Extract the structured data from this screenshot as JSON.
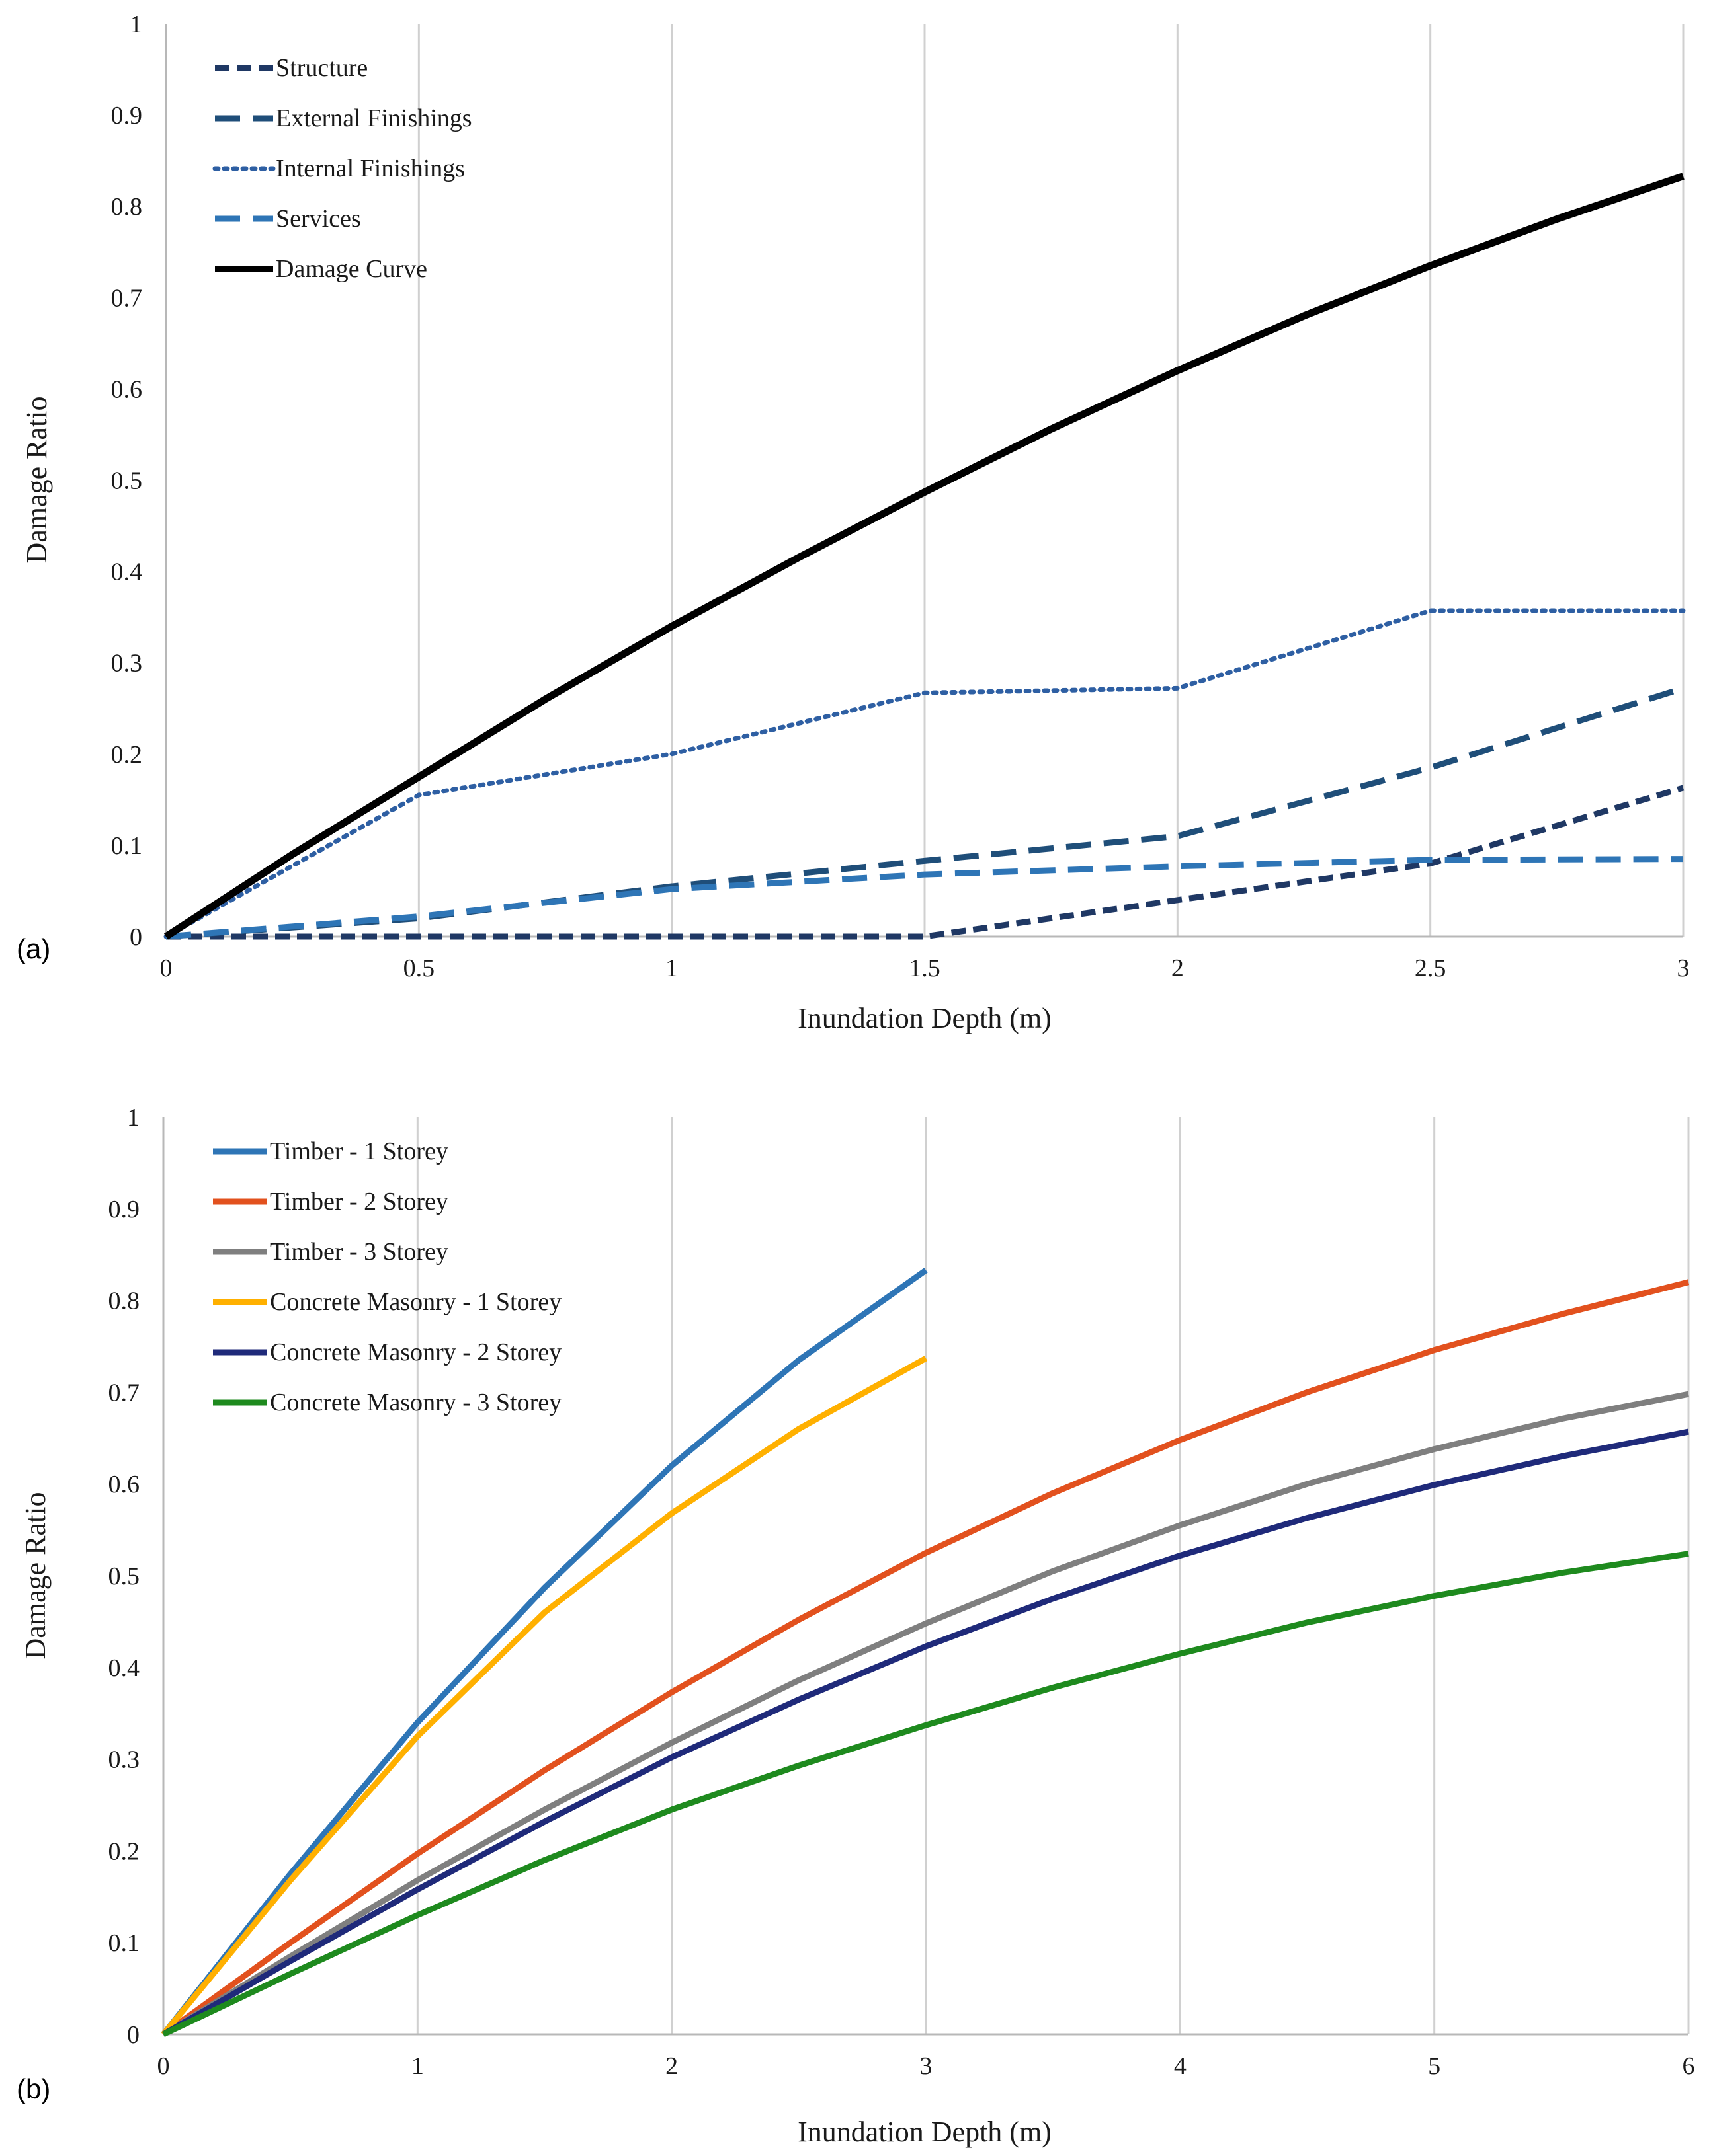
{
  "panels": [
    {
      "label": "(a)",
      "chart_data": {
        "type": "line",
        "title": "",
        "xlabel": "Inundation Depth (m)",
        "ylabel": "Damage Ratio",
        "xlim": [
          0,
          3
        ],
        "ylim": [
          0,
          1
        ],
        "x_ticks": [
          "0",
          "0.5",
          "1",
          "1.5",
          "2",
          "2.5",
          "3"
        ],
        "y_ticks": [
          "0",
          "0.1",
          "0.2",
          "0.3",
          "0.4",
          "0.5",
          "0.6",
          "0.7",
          "0.8",
          "0.9",
          "1"
        ],
        "grid": "vertical",
        "legend_position": "top-left",
        "series": [
          {
            "name": "Structure",
            "color": "#1f3864",
            "dash": "short-dash",
            "x": [
              0,
              0.5,
              1,
              1.5,
              2,
              2.5,
              3
            ],
            "y": [
              0,
              0,
              0,
              0,
              0.04,
              0.08,
              0.163
            ]
          },
          {
            "name": "External Finishings",
            "color": "#1f4e79",
            "dash": "long-dash",
            "x": [
              0,
              0.5,
              1,
              1.5,
              2,
              2.5,
              3
            ],
            "y": [
              0,
              0.02,
              0.055,
              0.083,
              0.11,
              0.185,
              0.272
            ]
          },
          {
            "name": "Internal Finishings",
            "color": "#2e5fa3",
            "dash": "dot",
            "x": [
              0,
              0.5,
              1,
              1.5,
              2,
              2.5,
              3
            ],
            "y": [
              0,
              0.155,
              0.2,
              0.267,
              0.272,
              0.357,
              0.357
            ]
          },
          {
            "name": "Services",
            "color": "#2e75b6",
            "dash": "long-dash",
            "x": [
              0,
              0.5,
              1,
              1.5,
              2,
              2.5,
              3
            ],
            "y": [
              0,
              0.022,
              0.052,
              0.068,
              0.077,
              0.084,
              0.085
            ]
          },
          {
            "name": "Damage Curve",
            "color": "#000000",
            "dash": "solid",
            "x": [
              0,
              0.25,
              0.5,
              0.75,
              1,
              1.25,
              1.5,
              1.75,
              2,
              2.25,
              2.5,
              2.75,
              3
            ],
            "y": [
              0,
              0.09,
              0.175,
              0.26,
              0.34,
              0.415,
              0.487,
              0.556,
              0.62,
              0.68,
              0.735,
              0.786,
              0.833
            ]
          }
        ]
      }
    },
    {
      "label": "(b)",
      "chart_data": {
        "type": "line",
        "title": "",
        "xlabel": "Inundation Depth (m)",
        "ylabel": "Damage Ratio",
        "xlim": [
          0,
          6
        ],
        "ylim": [
          0,
          1
        ],
        "x_ticks": [
          "0",
          "1",
          "2",
          "3",
          "4",
          "5",
          "6"
        ],
        "y_ticks": [
          "0",
          "0.1",
          "0.2",
          "0.3",
          "0.4",
          "0.5",
          "0.6",
          "0.7",
          "0.8",
          "0.9",
          "1"
        ],
        "grid": "vertical",
        "legend_position": "top-left",
        "series": [
          {
            "name": "Timber - 1 Storey",
            "color": "#2e75b6",
            "dash": "solid",
            "x": [
              0,
              0.5,
              1,
              1.5,
              2,
              2.5,
              3
            ],
            "y": [
              0,
              0.175,
              0.34,
              0.487,
              0.62,
              0.735,
              0.833
            ]
          },
          {
            "name": "Timber - 2 Storey",
            "color": "#e2511e",
            "dash": "solid",
            "x": [
              0,
              0.5,
              1,
              1.5,
              2,
              2.5,
              3,
              3.5,
              4,
              4.5,
              5,
              5.5,
              6
            ],
            "y": [
              0,
              0.1,
              0.197,
              0.288,
              0.373,
              0.452,
              0.525,
              0.59,
              0.648,
              0.7,
              0.746,
              0.785,
              0.82
            ]
          },
          {
            "name": "Timber - 3 Storey",
            "color": "#7f7f7f",
            "dash": "solid",
            "x": [
              0,
              0.5,
              1,
              1.5,
              2,
              2.5,
              3,
              3.5,
              4,
              4.5,
              5,
              5.5,
              6
            ],
            "y": [
              0,
              0.085,
              0.168,
              0.245,
              0.318,
              0.386,
              0.448,
              0.505,
              0.555,
              0.6,
              0.638,
              0.671,
              0.698
            ]
          },
          {
            "name": "Concrete Masonry - 1 Storey",
            "color": "#ffb000",
            "dash": "solid",
            "x": [
              0,
              0.5,
              1,
              1.5,
              2,
              2.5,
              3
            ],
            "y": [
              0,
              0.168,
              0.325,
              0.46,
              0.568,
              0.66,
              0.737
            ]
          },
          {
            "name": "Concrete Masonry - 2 Storey",
            "color": "#1f2a7a",
            "dash": "solid",
            "x": [
              0,
              0.5,
              1,
              1.5,
              2,
              2.5,
              3,
              3.5,
              4,
              4.5,
              5,
              5.5,
              6
            ],
            "y": [
              0,
              0.08,
              0.158,
              0.232,
              0.302,
              0.365,
              0.423,
              0.475,
              0.522,
              0.563,
              0.599,
              0.63,
              0.657
            ]
          },
          {
            "name": "Concrete Masonry - 3 Storey",
            "color": "#1e8a1e",
            "dash": "solid",
            "x": [
              0,
              0.5,
              1,
              1.5,
              2,
              2.5,
              3,
              3.5,
              4,
              4.5,
              5,
              5.5,
              6
            ],
            "y": [
              0,
              0.066,
              0.13,
              0.19,
              0.245,
              0.293,
              0.337,
              0.378,
              0.415,
              0.449,
              0.478,
              0.503,
              0.524
            ]
          }
        ]
      }
    }
  ]
}
